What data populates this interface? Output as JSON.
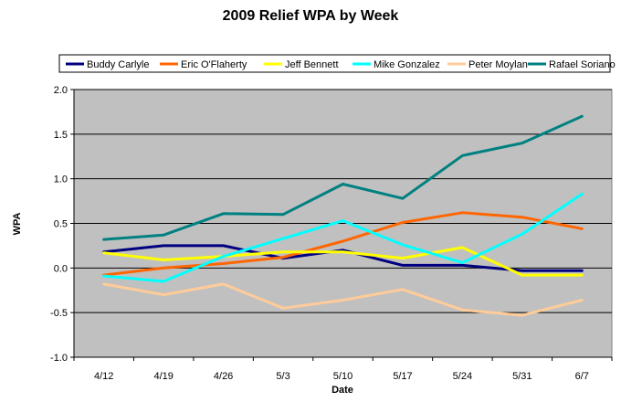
{
  "chart_data": {
    "type": "line",
    "title": "2009 Relief WPA by Week",
    "xlabel": "Date",
    "ylabel": "WPA",
    "categories": [
      "4/12",
      "4/19",
      "4/26",
      "5/3",
      "5/10",
      "5/17",
      "5/24",
      "5/31",
      "6/7"
    ],
    "ylim": [
      -1.0,
      2.0
    ],
    "yticks": [
      "2.0",
      "1.5",
      "1.0",
      "0.5",
      "0.0",
      "-0.5",
      "-1.0"
    ],
    "ytick_values": [
      2.0,
      1.5,
      1.0,
      0.5,
      0.0,
      -0.5,
      -1.0
    ],
    "grid": true,
    "legend": "top",
    "plot_background": "#c0c0c0",
    "series": [
      {
        "name": "Buddy Carlyle",
        "color": "#000080",
        "values": [
          0.18,
          0.25,
          0.25,
          0.11,
          0.2,
          0.03,
          0.03,
          -0.03,
          -0.03
        ]
      },
      {
        "name": "Eric O'Flaherty",
        "color": "#ff6600",
        "values": [
          -0.08,
          0.0,
          0.05,
          0.12,
          0.3,
          0.51,
          0.62,
          0.57,
          0.44
        ]
      },
      {
        "name": "Jeff Bennett",
        "color": "#ffff00",
        "values": [
          0.17,
          0.09,
          0.13,
          0.18,
          0.18,
          0.11,
          0.23,
          -0.08,
          -0.08
        ]
      },
      {
        "name": "Mike Gonzalez",
        "color": "#00ffff",
        "values": [
          -0.09,
          -0.15,
          0.13,
          0.33,
          0.53,
          0.26,
          0.06,
          0.38,
          0.83
        ]
      },
      {
        "name": "Peter Moylan",
        "color": "#ffcc99",
        "values": [
          -0.18,
          -0.3,
          -0.18,
          -0.45,
          -0.36,
          -0.24,
          -0.47,
          -0.53,
          -0.36
        ]
      },
      {
        "name": "Rafael Soriano",
        "color": "#008080",
        "values": [
          0.32,
          0.37,
          0.61,
          0.6,
          0.94,
          0.78,
          1.26,
          1.4,
          1.7
        ]
      }
    ]
  }
}
